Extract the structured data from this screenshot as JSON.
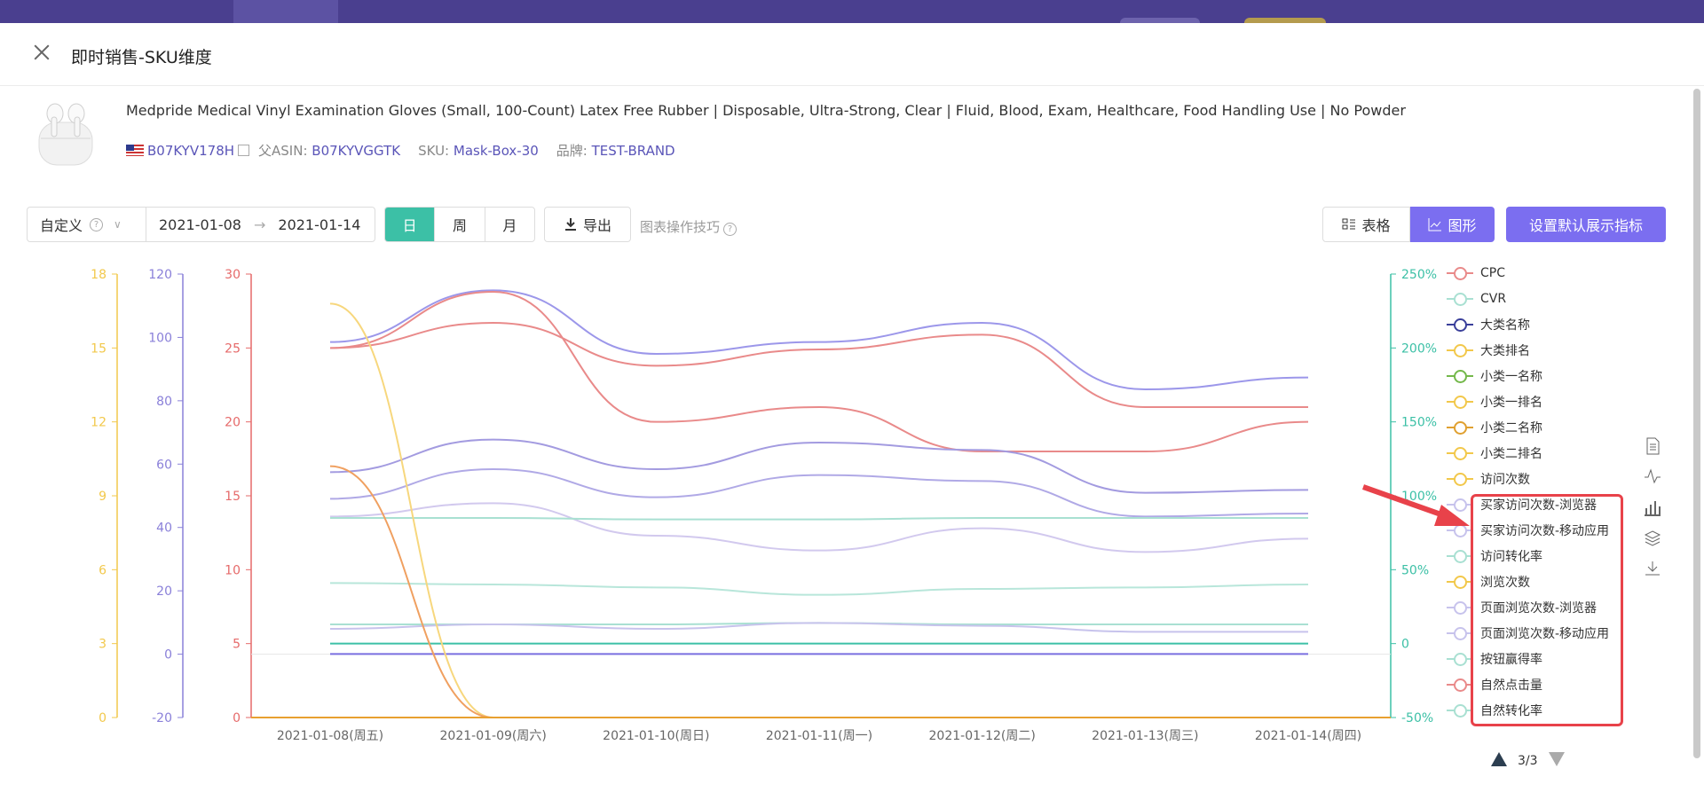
{
  "modal": {
    "title": "即时销售-SKU维度"
  },
  "product": {
    "title": "Medpride Medical Vinyl Examination Gloves (Small, 100-Count) Latex Free Rubber | Disposable, Ultra-Strong, Clear | Fluid, Blood, Exam, Healthcare, Food Handling Use | No Powder",
    "asin": "B07KYV178H",
    "parent_label": "父ASIN:",
    "parent_asin": "B07KYVGGTK",
    "sku_label": "SKU:",
    "sku": "Mask-Box-30",
    "brand_label": "品牌:",
    "brand": "TEST-BRAND"
  },
  "toolbar": {
    "range_select": "自定义",
    "date_start": "2021-01-08",
    "date_arrow": "→",
    "date_end": "2021-01-14",
    "periods": [
      "日",
      "周",
      "月"
    ],
    "active_period": "日",
    "export_label": "导出",
    "tips_label": "图表操作技巧",
    "table_label": "表格",
    "graph_label": "图形",
    "settings_label": "设置默认展示指标"
  },
  "chart_data": {
    "type": "line",
    "title": "",
    "x": [
      "2021-01-08(周五)",
      "2021-01-09(周六)",
      "2021-01-10(周日)",
      "2021-01-11(周一)",
      "2021-01-12(周二)",
      "2021-01-13(周三)",
      "2021-01-14(周四)"
    ],
    "axes": [
      {
        "id": "a1",
        "color": "#f2c84b",
        "ticks": [
          "0",
          "3",
          "6",
          "9",
          "12",
          "15",
          "18"
        ],
        "range": [
          0,
          18
        ]
      },
      {
        "id": "a2",
        "color": "#8a80d9",
        "ticks": [
          "-20",
          "0",
          "20",
          "40",
          "60",
          "80",
          "100",
          "120"
        ],
        "range": [
          -20,
          120
        ]
      },
      {
        "id": "a3",
        "color": "#e66a6a",
        "ticks": [
          "0",
          "5",
          "10",
          "15",
          "20",
          "25",
          "30"
        ],
        "range": [
          0,
          30
        ]
      },
      {
        "id": "a4",
        "color": "#3cc0a6",
        "ticks": [
          "-50%",
          "0",
          "50%",
          "100%",
          "150%",
          "200%",
          "250%"
        ],
        "range": [
          -50,
          250
        ]
      }
    ],
    "series": [
      {
        "color": "#9c97ea",
        "axis": "a3",
        "values": [
          25.4,
          28.9,
          24.6,
          25.4,
          26.7,
          22.2,
          23.0
        ]
      },
      {
        "color": "#e98a8a",
        "axis": "a3",
        "values": [
          25.0,
          26.7,
          23.8,
          24.9,
          25.9,
          21.0,
          21.0
        ]
      },
      {
        "color": "#e98a8a",
        "axis": "a3",
        "values": [
          25.0,
          28.8,
          20.0,
          21.0,
          18.0,
          18.0,
          20.0
        ]
      },
      {
        "color": "#a39be0",
        "axis": "a3",
        "values": [
          16.6,
          18.8,
          16.8,
          18.6,
          18.1,
          15.2,
          15.4
        ]
      },
      {
        "color": "#b0a9e6",
        "axis": "a3",
        "values": [
          14.8,
          16.8,
          14.9,
          16.4,
          16.0,
          13.6,
          13.8
        ]
      },
      {
        "color": "#d2c9ee",
        "axis": "a3",
        "values": [
          13.6,
          14.5,
          12.3,
          11.3,
          12.8,
          11.2,
          12.1
        ]
      },
      {
        "color": "#a9e0d2",
        "axis": "a4",
        "values": [
          85,
          85,
          84,
          84,
          85,
          85,
          85
        ]
      },
      {
        "color": "#b8e6da",
        "axis": "a4",
        "values": [
          41,
          40,
          38,
          33,
          37,
          38,
          40
        ]
      },
      {
        "color": "#a9e0d2",
        "axis": "a4",
        "values": [
          13,
          13,
          13,
          14,
          13,
          13,
          13
        ]
      },
      {
        "color": "#c7c3ec",
        "axis": "a3",
        "values": [
          6.0,
          6.3,
          6.0,
          6.4,
          6.2,
          5.8,
          5.8
        ]
      },
      {
        "color": "#3cc0a6",
        "axis": "a3",
        "values": [
          5.0,
          5.0,
          5.0,
          5.0,
          5.0,
          5.0,
          5.0
        ]
      },
      {
        "color": "#7a6fe0",
        "axis": "a3",
        "values": [
          4.3,
          4.3,
          4.3,
          4.3,
          4.3,
          4.3,
          4.3
        ]
      },
      {
        "color": "#f7d77d",
        "axis": "a3",
        "values": [
          28.0,
          0.0,
          0.0,
          0.0,
          0.0,
          0.0,
          0.0
        ]
      },
      {
        "color": "#f0a060",
        "axis": "a3",
        "values": [
          17.0,
          0.0,
          0.0,
          0.0,
          0.0,
          0.0,
          0.0
        ]
      },
      {
        "color": "#e8a030",
        "axis": "a3",
        "values": [
          0,
          0,
          0,
          0,
          0,
          0,
          0
        ]
      }
    ]
  },
  "legend": {
    "items": [
      {
        "label": "CPC",
        "color": "#e98a8a"
      },
      {
        "label": "CVR",
        "color": "#a9e0d2"
      },
      {
        "label": "大类名称",
        "color": "#3a3f9a"
      },
      {
        "label": "大类排名",
        "color": "#f2c84b"
      },
      {
        "label": "小类一名称",
        "color": "#74b84b"
      },
      {
        "label": "小类一排名",
        "color": "#f2c84b"
      },
      {
        "label": "小类二名称",
        "color": "#e0a030"
      },
      {
        "label": "小类二排名",
        "color": "#f2c84b"
      },
      {
        "label": "访问次数",
        "color": "#f2c84b"
      },
      {
        "label": "买家访问次数-浏览器",
        "color": "#c7c3ec"
      },
      {
        "label": "买家访问次数-移动应用",
        "color": "#c7c3ec"
      },
      {
        "label": "访问转化率",
        "color": "#a9e0d2"
      },
      {
        "label": "浏览次数",
        "color": "#f2c84b"
      },
      {
        "label": "页面浏览次数-浏览器",
        "color": "#c7c3ec"
      },
      {
        "label": "页面浏览次数-移动应用",
        "color": "#c7c3ec"
      },
      {
        "label": "按钮赢得率",
        "color": "#a9e0d2"
      },
      {
        "label": "自然点击量",
        "color": "#e98a8a"
      },
      {
        "label": "自然转化率",
        "color": "#a9e0d2"
      }
    ],
    "page": "3/3"
  }
}
